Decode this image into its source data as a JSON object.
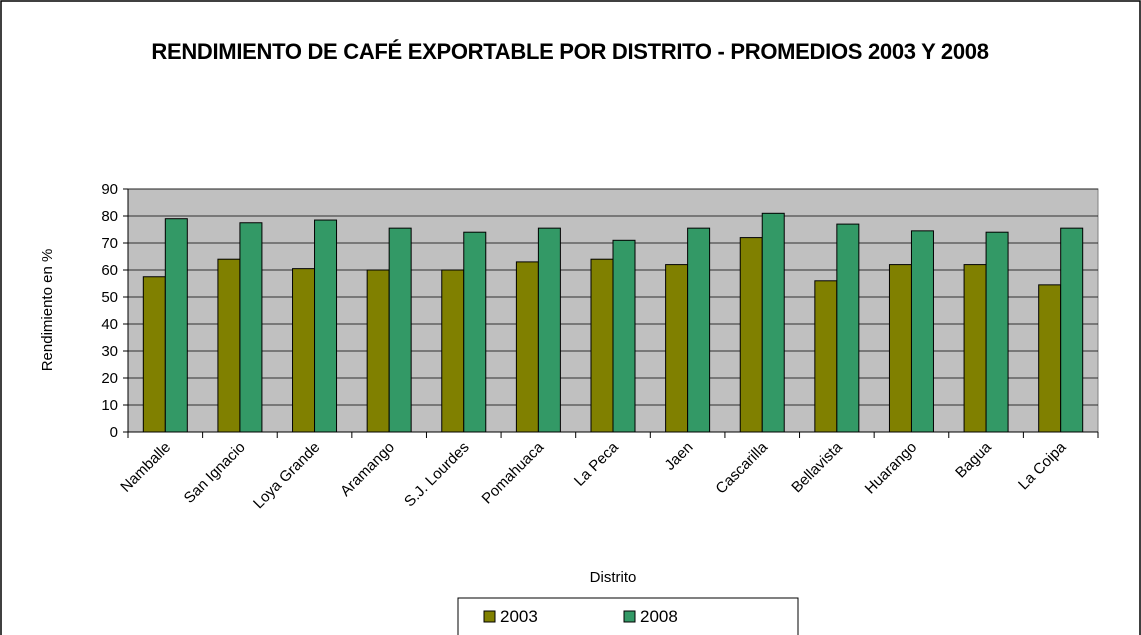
{
  "chart_data": {
    "type": "bar",
    "title": "RENDIMIENTO DE CAFÉ EXPORTABLE POR DISTRITO - PROMEDIOS 2003 Y 2008",
    "x_label": "Distrito",
    "y_label": "Rendimiento en %",
    "categories": [
      "Namballe",
      "San Ignacio",
      "Loya Grande",
      "Aramango",
      "S.J. Lourdes",
      "Pomahuaca",
      "La Peca",
      "Jaen",
      "Cascarilla",
      "Bellavista",
      "Huarango",
      "Bagua",
      "La Coipa"
    ],
    "series": [
      {
        "name": "2003",
        "color": "#808000",
        "values": [
          57.5,
          64,
          60.5,
          60,
          60,
          63,
          64,
          62,
          72,
          56,
          62,
          62,
          54.5
        ]
      },
      {
        "name": "2008",
        "color": "#339966",
        "values": [
          79,
          77.5,
          78.5,
          75.5,
          74,
          75.5,
          71,
          75.5,
          81,
          77,
          74.5,
          74,
          75.5
        ]
      }
    ],
    "ylim": [
      0,
      90
    ],
    "yticks": [
      0,
      10,
      20,
      30,
      40,
      50,
      60,
      70,
      80,
      90
    ],
    "grid": true
  }
}
